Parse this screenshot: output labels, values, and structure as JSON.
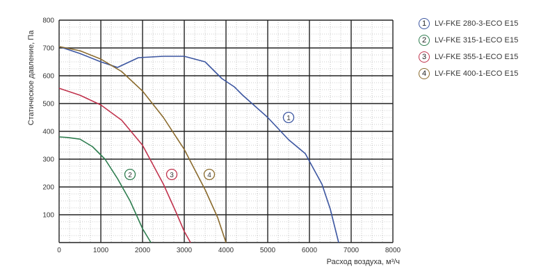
{
  "chart_data": {
    "type": "line",
    "xlabel": "Расход воздуха, м³/ч",
    "ylabel": "Статическое давление, Па",
    "xlim": [
      0,
      8000
    ],
    "ylim": [
      0,
      800
    ],
    "xticks": [
      "0",
      "1000",
      "2000",
      "3000",
      "4000",
      "5000",
      "6000",
      "7000",
      "8000"
    ],
    "yticks": [
      "100",
      "200",
      "300",
      "400",
      "500",
      "600",
      "700",
      "800"
    ],
    "grid": true,
    "legend_position": "right",
    "series": [
      {
        "name": "LV-FKE 280-3-ECO E15",
        "marker": "1",
        "color": "#3b55a0",
        "x": [
          0,
          500,
          1000,
          1400,
          1900,
          2500,
          3000,
          3500,
          3900,
          4200,
          4400,
          5000,
          5500,
          5900,
          6300,
          6500,
          6700
        ],
        "y": [
          705,
          680,
          650,
          630,
          665,
          670,
          670,
          650,
          590,
          560,
          530,
          450,
          370,
          320,
          210,
          120,
          0
        ],
        "label_at": [
          5500,
          450
        ]
      },
      {
        "name": "LV-FKE 315-1-ECO E15",
        "marker": "2",
        "color": "#2e7d4f",
        "x": [
          0,
          200,
          500,
          800,
          1100,
          1400,
          1700,
          2000,
          2200
        ],
        "y": [
          380,
          378,
          372,
          345,
          300,
          230,
          150,
          50,
          0
        ],
        "label_at": [
          1700,
          245
        ]
      },
      {
        "name": "LV-FKE 355-1-ECO E15",
        "marker": "3",
        "color": "#c0334d",
        "x": [
          0,
          500,
          1000,
          1500,
          2000,
          2500,
          2800,
          3000,
          3150
        ],
        "y": [
          555,
          530,
          495,
          440,
          350,
          210,
          110,
          40,
          0
        ],
        "label_at": [
          2700,
          245
        ]
      },
      {
        "name": "LV-FKE 400-1-ECO E15",
        "marker": "4",
        "color": "#8a6a2c",
        "x": [
          0,
          500,
          1000,
          1500,
          2000,
          2500,
          3000,
          3500,
          3800,
          4000
        ],
        "y": [
          705,
          690,
          660,
          615,
          545,
          450,
          335,
          190,
          90,
          0
        ],
        "label_at": [
          3600,
          245
        ]
      }
    ]
  }
}
